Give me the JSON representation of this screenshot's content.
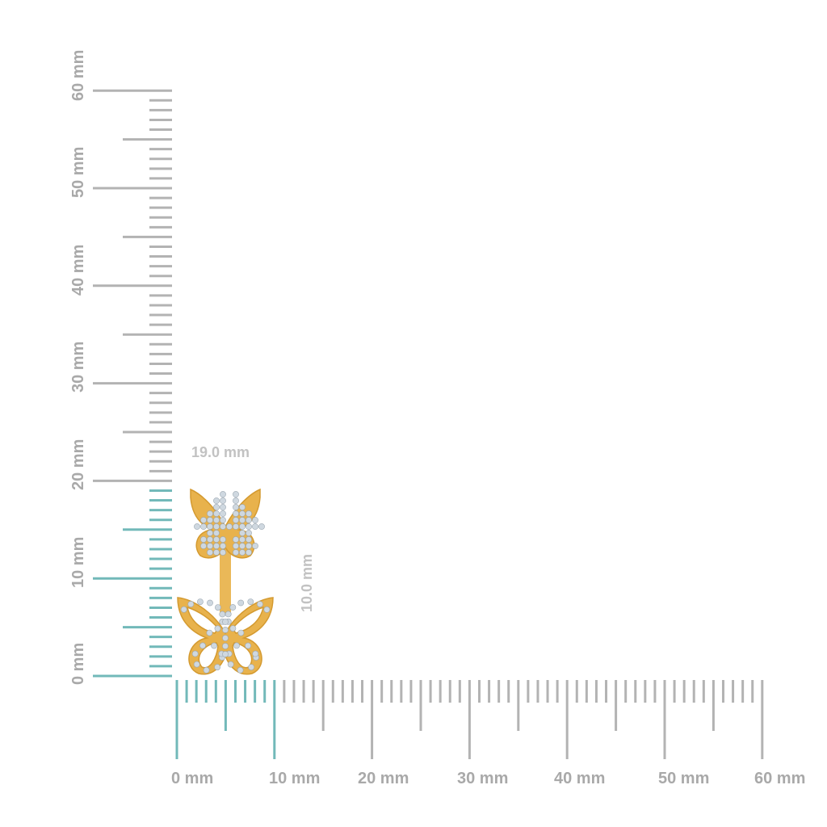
{
  "rulers": {
    "unit": "mm",
    "range": [
      0,
      60
    ],
    "colors": {
      "tick": "#b3b3b3",
      "highlight": "#72b9b9",
      "label": "#a9a9a9"
    },
    "vertical": {
      "labels": [
        "0 mm",
        "10 mm",
        "20 mm",
        "30 mm",
        "40 mm",
        "50 mm",
        "60 mm"
      ],
      "highlight_to": 19
    },
    "horizontal": {
      "labels": [
        "0 mm",
        "10 mm",
        "20 mm",
        "30 mm",
        "40 mm",
        "50 mm",
        "60 mm"
      ],
      "highlight_to": 10
    }
  },
  "dimensions": {
    "height_label": "19.0 mm",
    "width_label": "10.0 mm"
  },
  "product": {
    "description_icon": "butterfly-earring",
    "metal_color": "#e8b24c",
    "stone_color": "#cfd8e0"
  }
}
